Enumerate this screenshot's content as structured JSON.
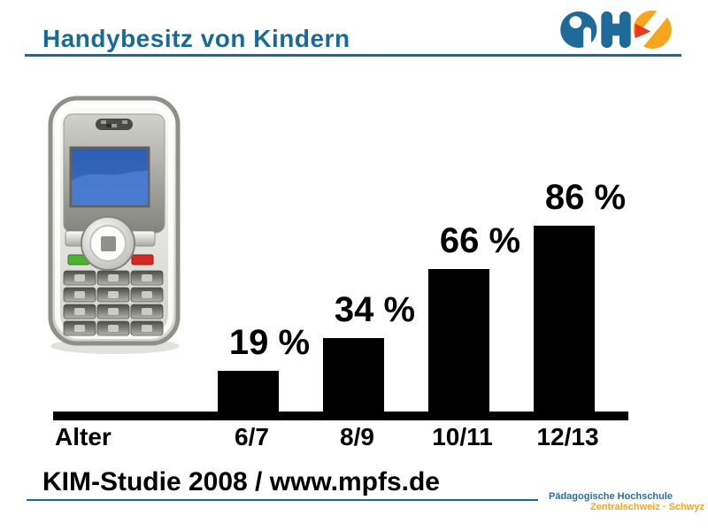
{
  "title": {
    "text": "Handybesitz von Kindern"
  },
  "logo": {
    "letters": "PHZ",
    "blue": "#1E6B99",
    "orange": "#F6A51C",
    "red": "#E8391D"
  },
  "icons": {
    "phone": "mobile-phone-illustration",
    "logo": "phz-logo"
  },
  "chart_data": {
    "type": "bar",
    "title": "Handybesitz von Kindern",
    "xlabel": "Alter",
    "categories": [
      "6/7",
      "8/9",
      "10/11",
      "12/13"
    ],
    "values": [
      19,
      34,
      66,
      86
    ],
    "value_labels": [
      "19 %",
      "34 %",
      "66 %",
      "86 %"
    ],
    "ylim": [
      0,
      100
    ],
    "bar_color": "#000000",
    "grid": false,
    "legend": false
  },
  "source": {
    "text": "KIM-Studie 2008 / www.mpfs.de"
  },
  "institution": {
    "line1": "Pädagogische Hochschule",
    "line2": "Zentralschweiz · Schwyz"
  },
  "colors": {
    "accent_blue": "#1A6A98",
    "accent_orange": "#F6A51C",
    "accent_red": "#E8391D",
    "bar_black": "#000000"
  }
}
